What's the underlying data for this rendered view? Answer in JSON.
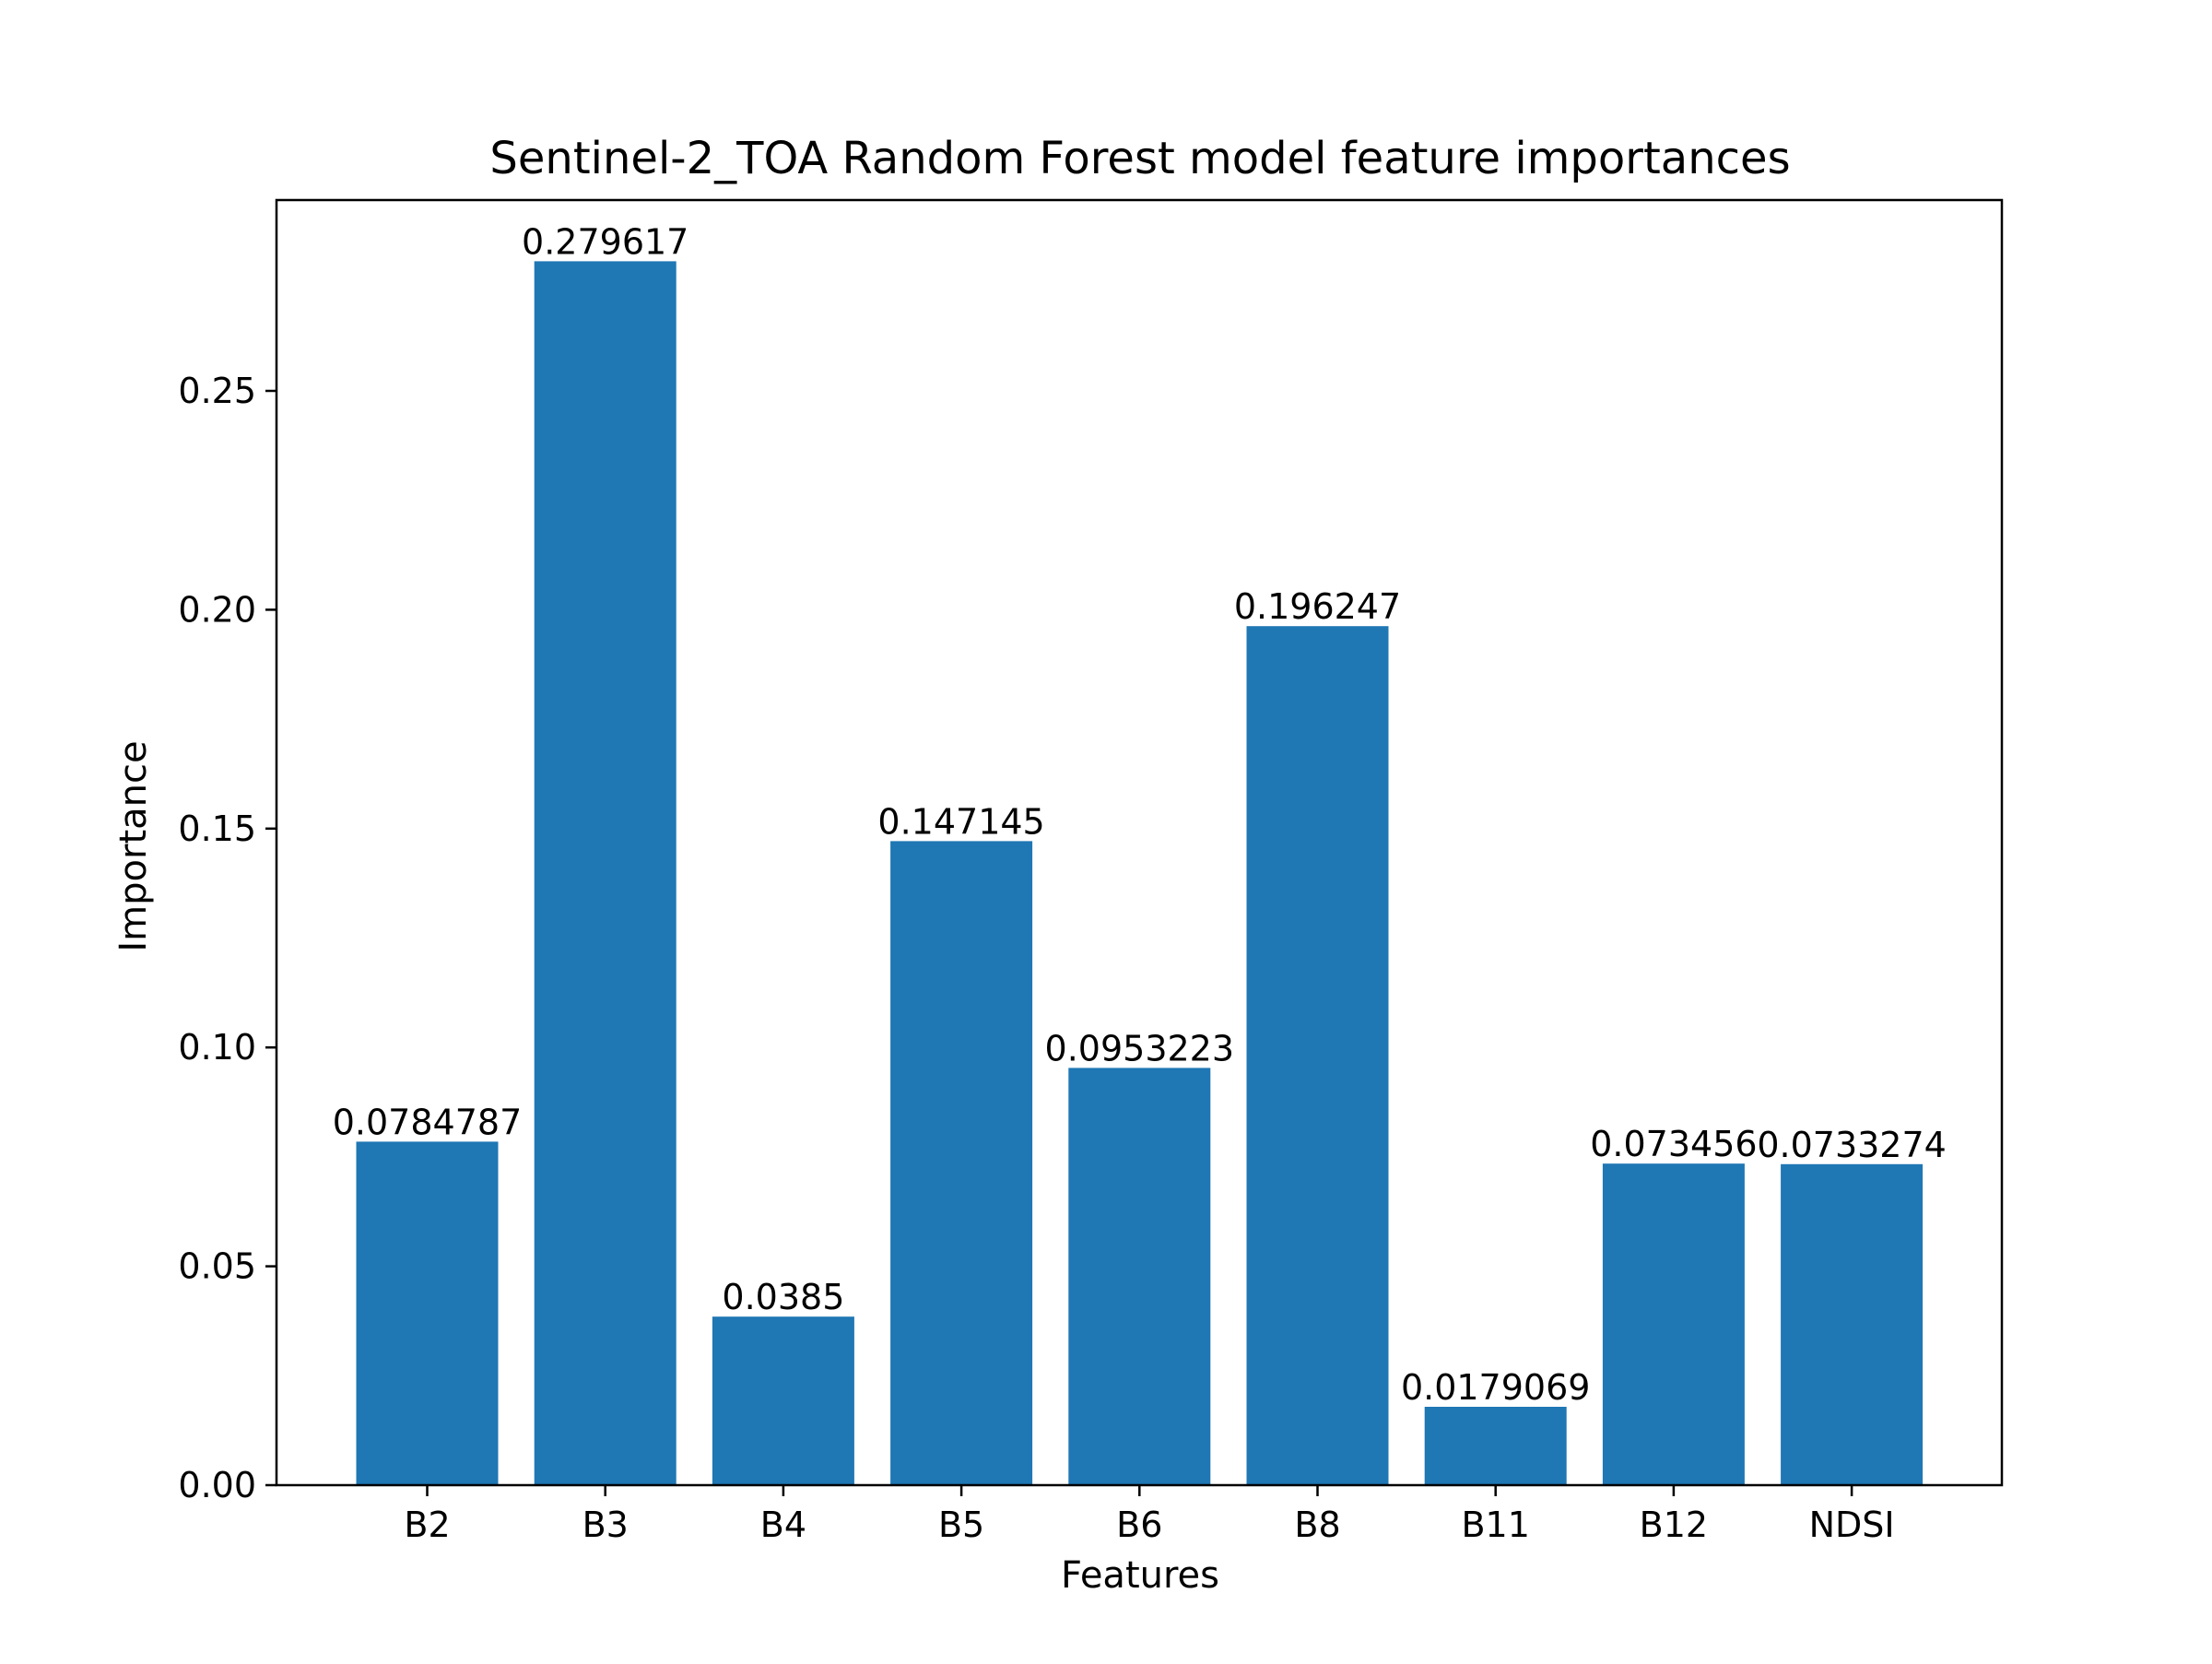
{
  "chart_data": {
    "type": "bar",
    "title": "Sentinel-2_TOA Random Forest model feature importances",
    "xlabel": "Features",
    "ylabel": "Importance",
    "categories": [
      "B2",
      "B3",
      "B4",
      "B5",
      "B6",
      "B8",
      "B11",
      "B12",
      "NDSI"
    ],
    "values": [
      0.0784787,
      0.279617,
      0.0385,
      0.147145,
      0.0953223,
      0.196247,
      0.0179069,
      0.073456,
      0.0733274
    ],
    "data_labels": [
      "0.0784787",
      "0.279617",
      "0.0385",
      "0.147145",
      "0.0953223",
      "0.196247",
      "0.0179069",
      "0.073456",
      "0.0733274"
    ],
    "yticks": [
      0.0,
      0.05,
      0.1,
      0.15,
      0.2,
      0.25
    ],
    "ytick_labels": [
      "0.00",
      "0.05",
      "0.10",
      "0.15",
      "0.20",
      "0.25"
    ],
    "ylim": [
      0,
      0.2936
    ],
    "grid": false,
    "bar_color": "#1f77b4"
  }
}
